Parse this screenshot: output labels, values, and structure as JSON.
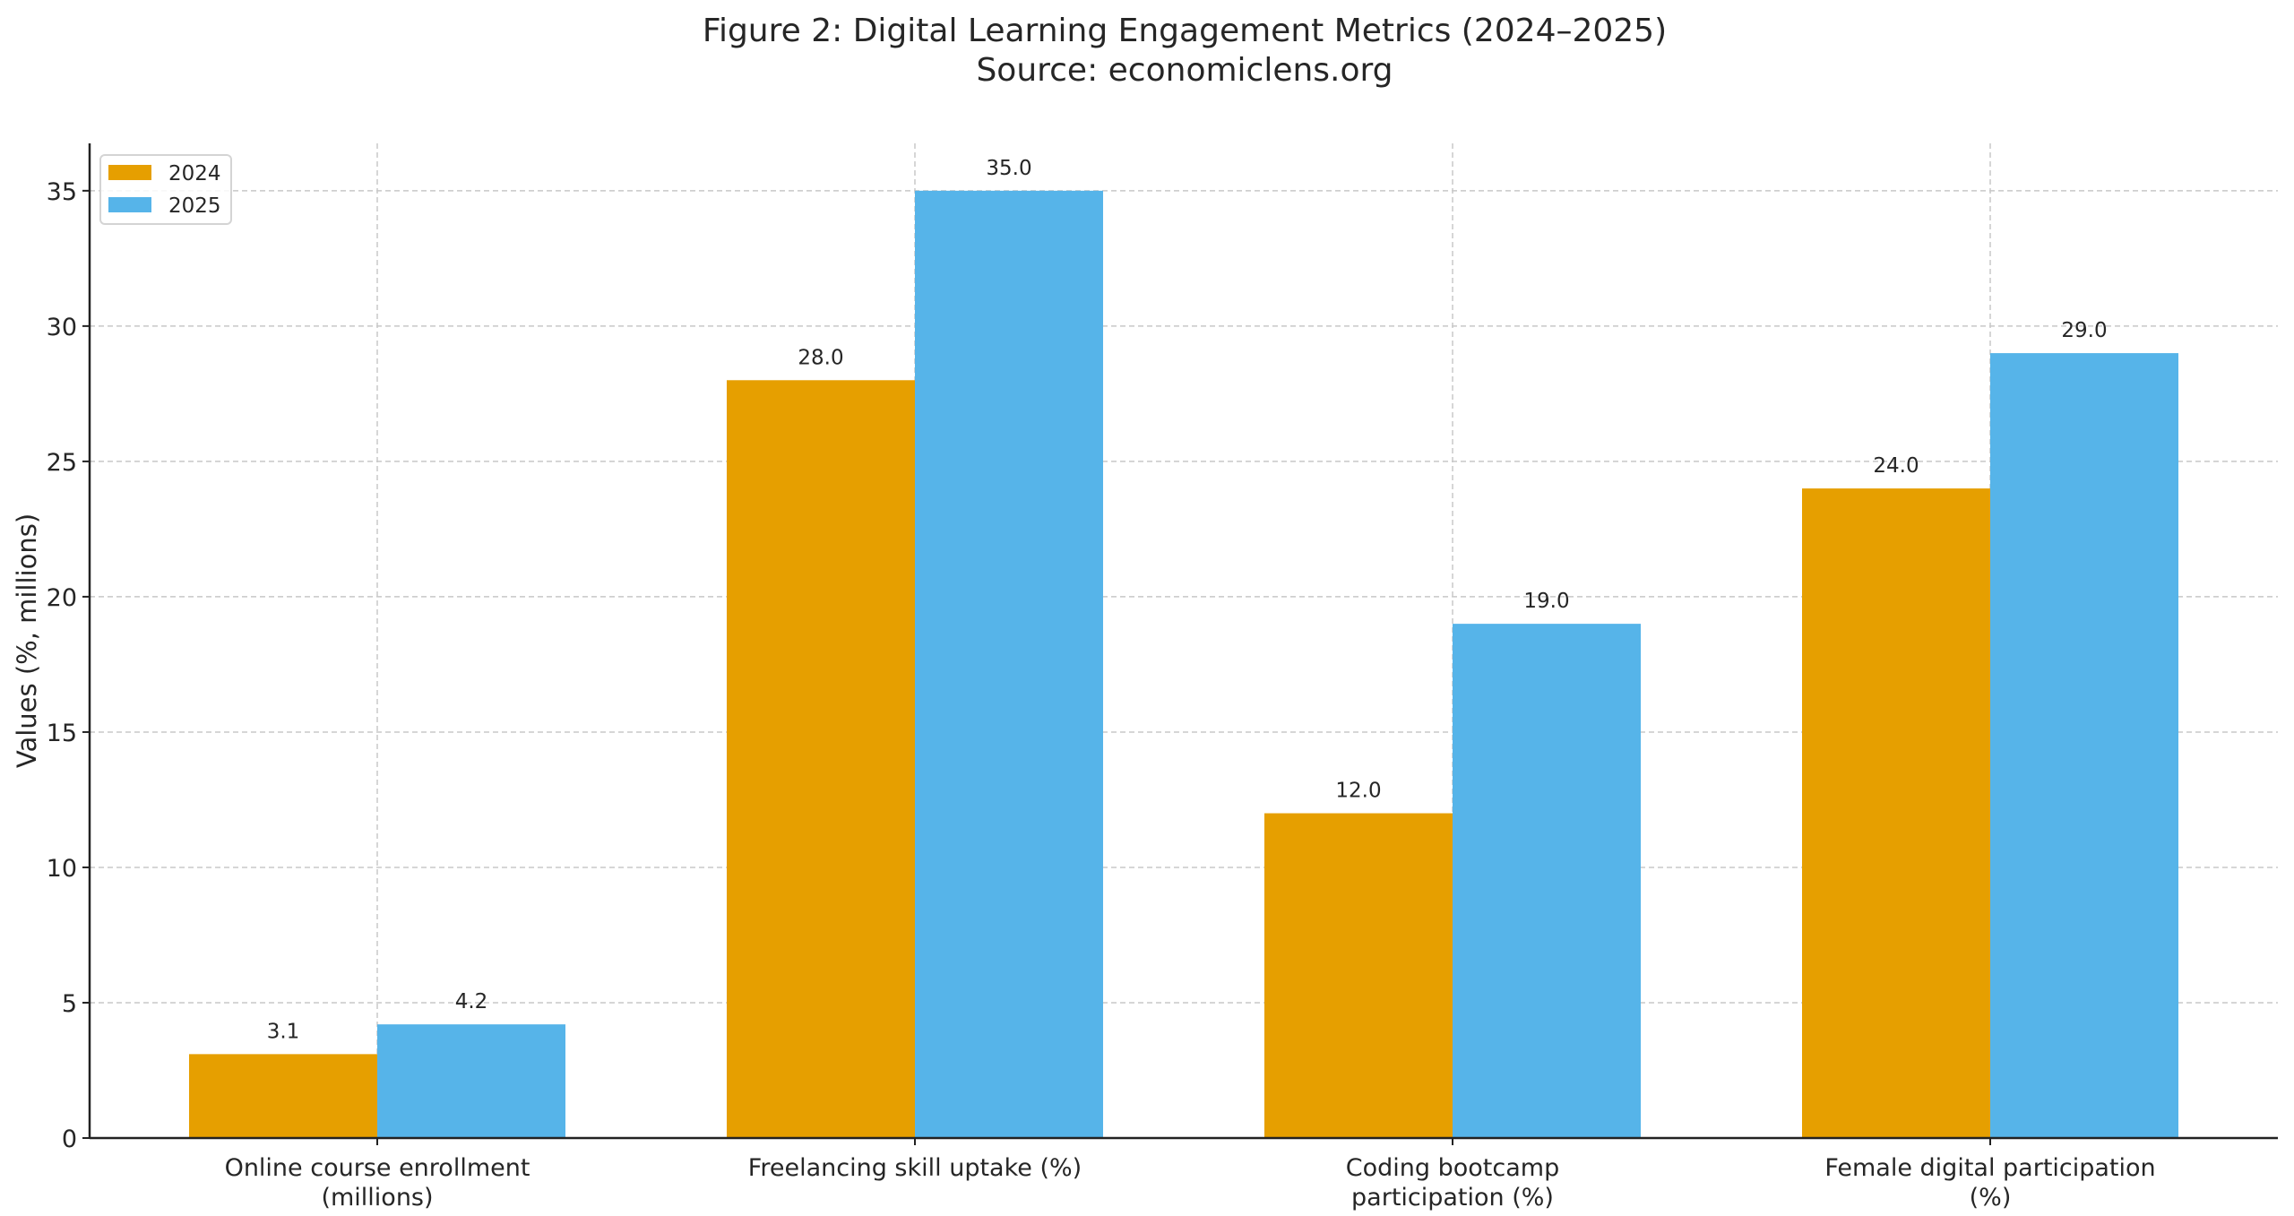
{
  "chart_data": {
    "type": "bar",
    "title": "Figure 2: Digital Learning Engagement Metrics (2024–2025)",
    "subtitle": "Source: economiclens.org",
    "xlabel": "",
    "ylabel": "Values (%, millions)",
    "categories": [
      [
        "Online course enrollment",
        "(millions)"
      ],
      [
        "Freelancing skill uptake (%)"
      ],
      [
        "Coding bootcamp",
        "participation (%)"
      ],
      [
        "Female digital participation",
        "(%)"
      ]
    ],
    "series": [
      {
        "name": "2024",
        "color": "#E69F00",
        "values": [
          3.1,
          28.0,
          12.0,
          24.0
        ]
      },
      {
        "name": "2025",
        "color": "#56B4E9",
        "values": [
          4.2,
          35.0,
          19.0,
          29.0
        ]
      }
    ],
    "data_labels": [
      [
        "3.1",
        "28.0",
        "12.0",
        "24.0"
      ],
      [
        "4.2",
        "35.0",
        "19.0",
        "29.0"
      ]
    ],
    "yticks": [
      "0",
      "5",
      "10",
      "15",
      "20",
      "25",
      "30",
      "35"
    ],
    "ylim": [
      0,
      36.75
    ],
    "grid": true,
    "legend": "top-left"
  }
}
